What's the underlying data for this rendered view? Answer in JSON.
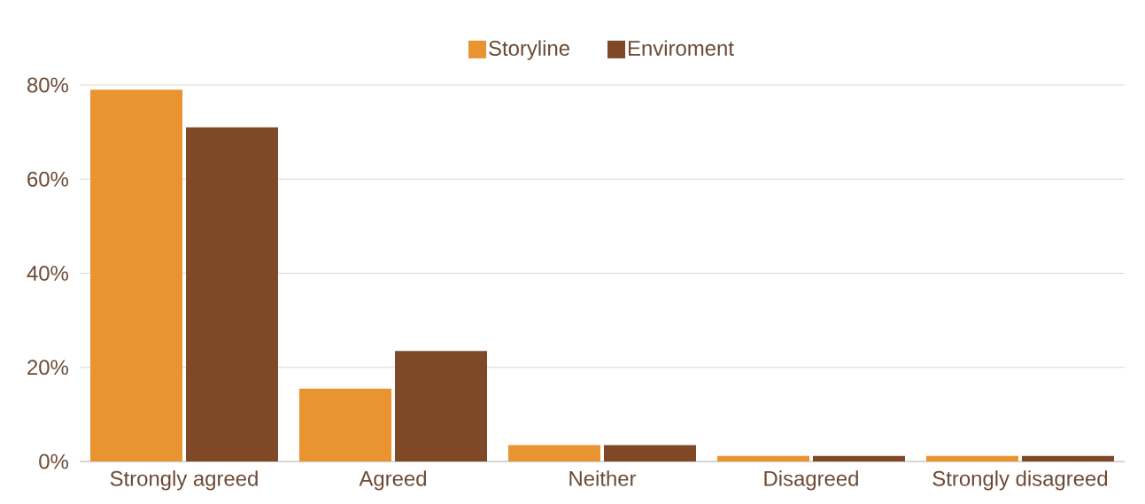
{
  "chart_data": {
    "type": "bar",
    "categories": [
      "Strongly agreed",
      "Agreed",
      "Neither",
      "Disagreed",
      "Strongly disagreed"
    ],
    "series": [
      {
        "name": "Storyline",
        "color": "#e99430",
        "values": [
          79,
          15.5,
          3.5,
          1.2,
          1.2
        ]
      },
      {
        "name": "Enviroment",
        "color": "#7f4827",
        "values": [
          71,
          23.5,
          3.5,
          1.2,
          1.2
        ]
      }
    ],
    "ylim": [
      0,
      80
    ],
    "yticks": [
      {
        "value": 0,
        "label": "0%"
      },
      {
        "value": 20,
        "label": "20%"
      },
      {
        "value": 40,
        "label": "40%"
      },
      {
        "value": 60,
        "label": "60%"
      },
      {
        "value": 80,
        "label": "80%"
      }
    ],
    "grid": "y",
    "legend": "top"
  }
}
